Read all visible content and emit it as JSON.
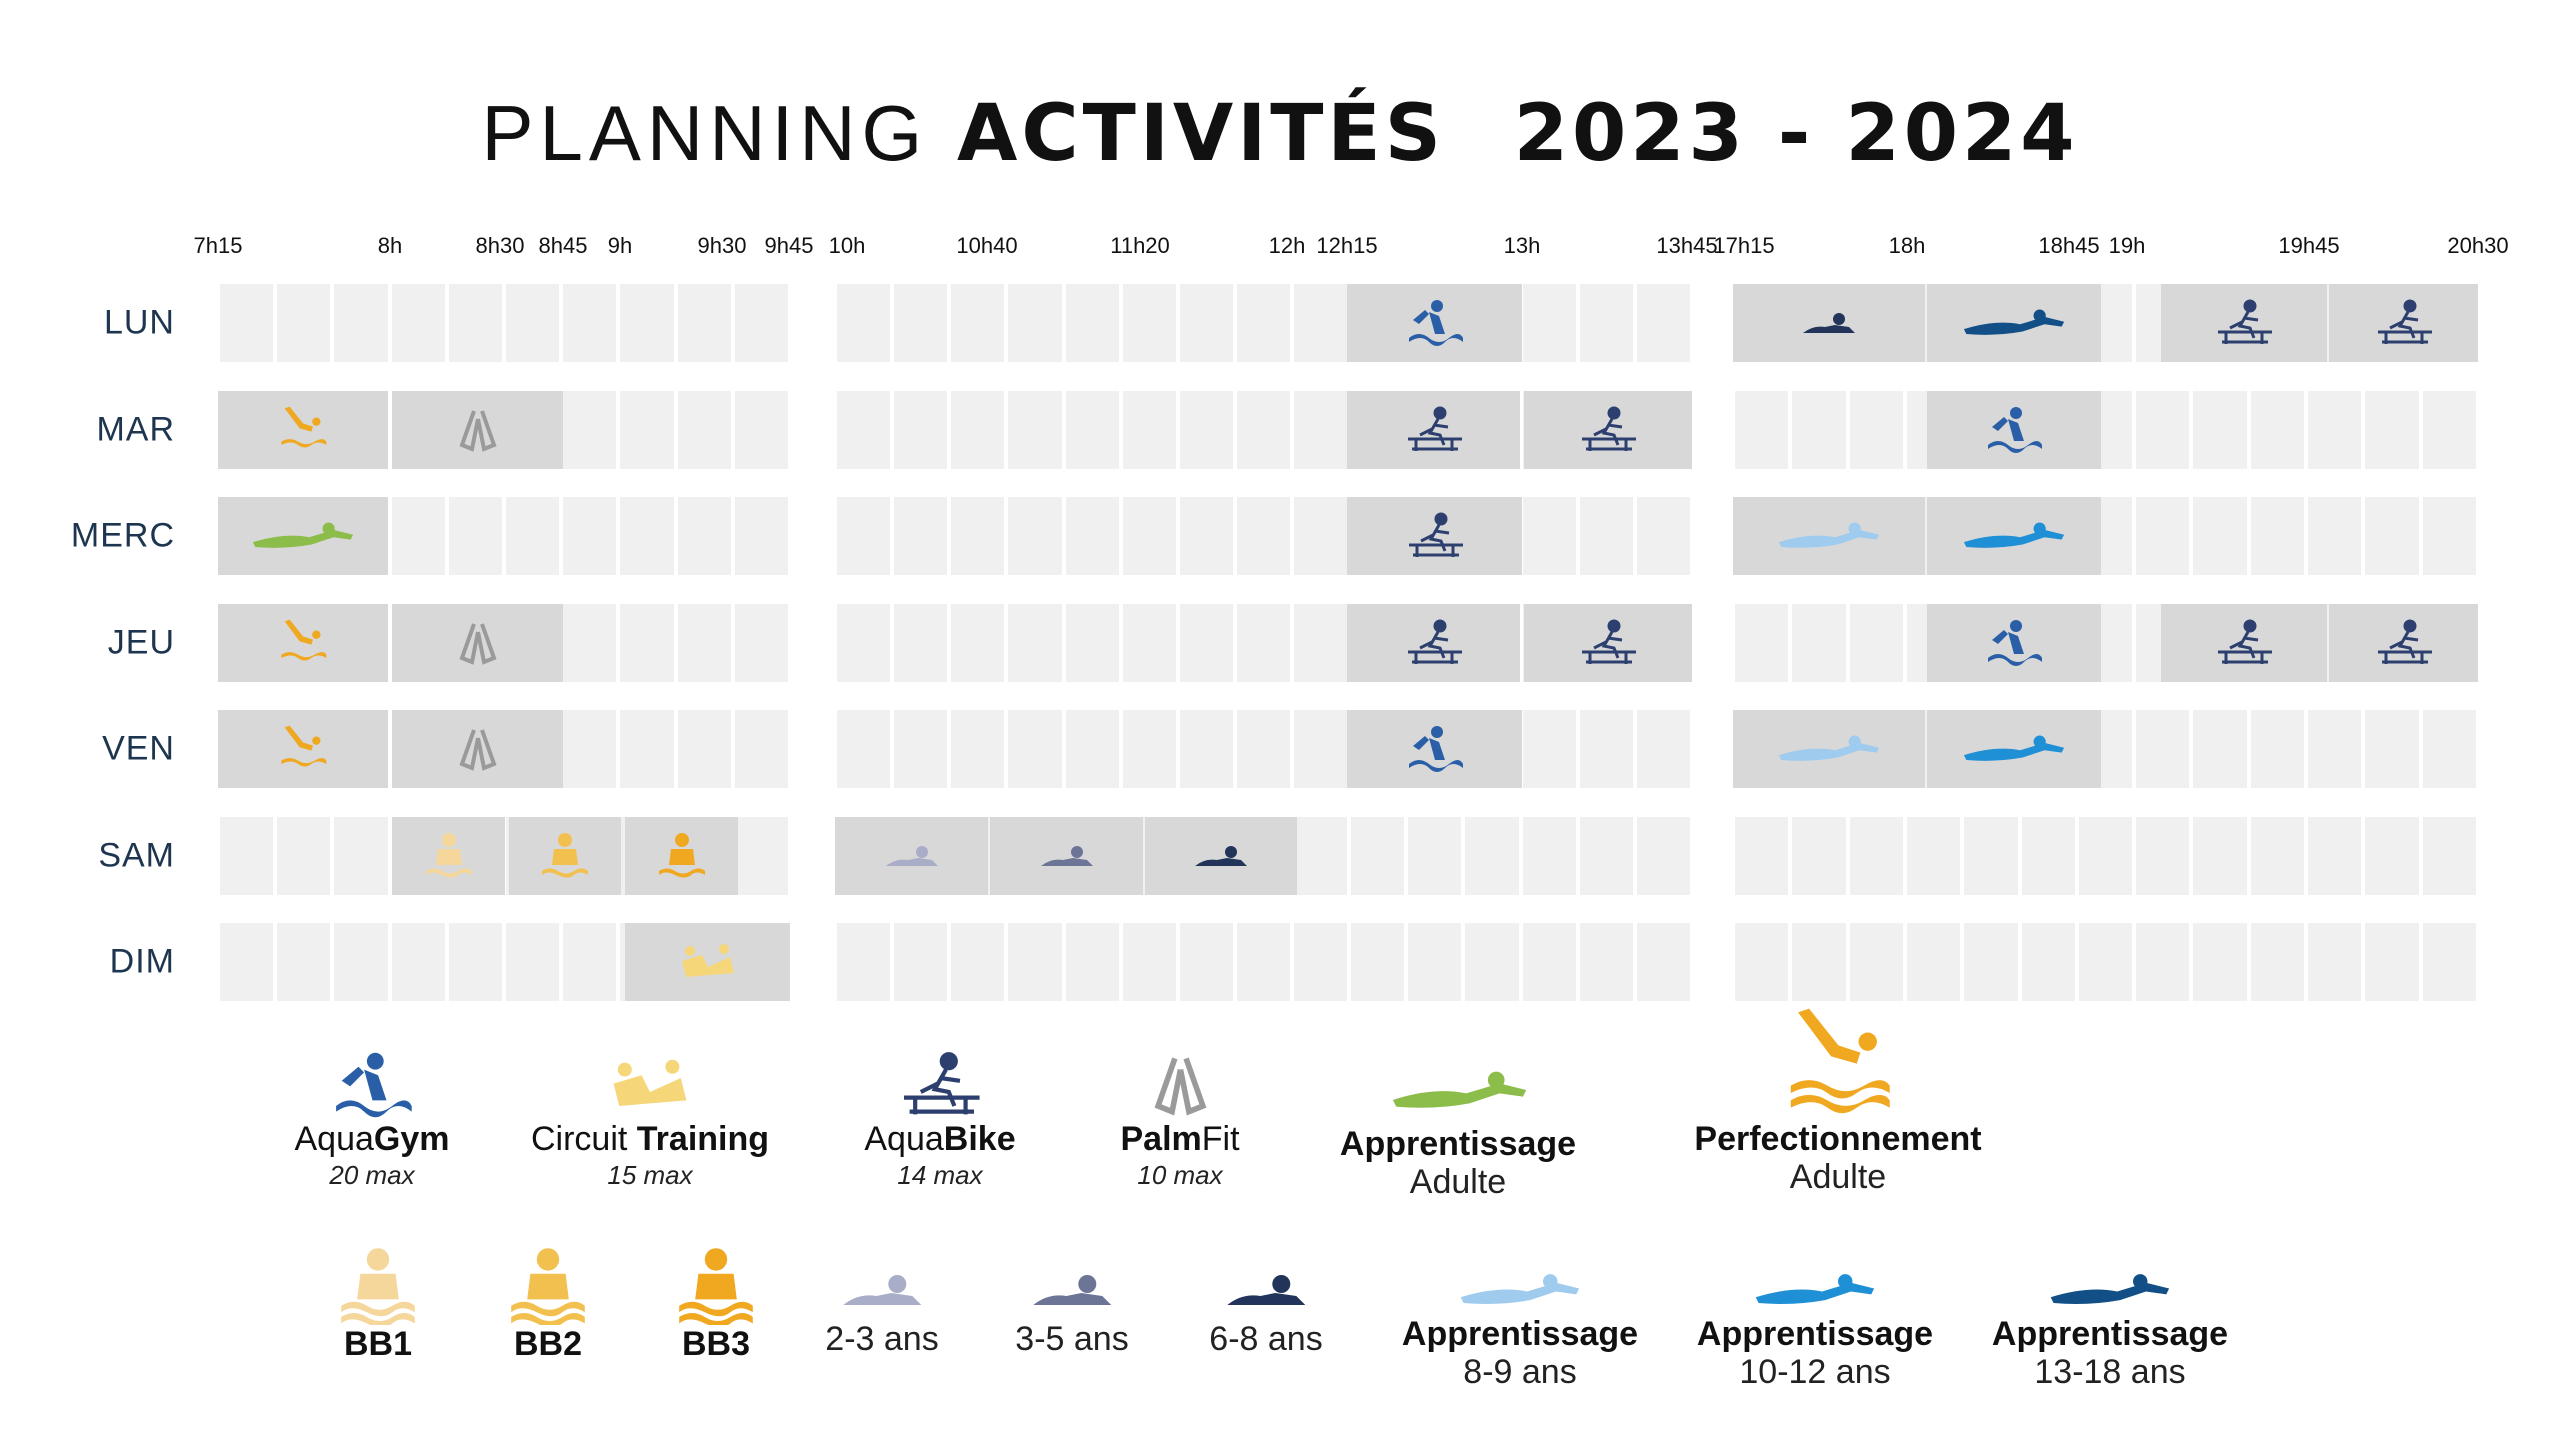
{
  "title": {
    "part1": "PLANNING",
    "part2": "ACTIVITÉS",
    "part3": "2023 - 2024"
  },
  "time_labels": [
    "7h15",
    "8h",
    "8h30",
    "8h45",
    "9h",
    "9h30",
    "9h45",
    "10h",
    "10h40",
    "11h20",
    "12h",
    "12h15",
    "13h",
    "13h45",
    "17h15",
    "18h",
    "18h45",
    "19h",
    "19h45",
    "20h30"
  ],
  "days": [
    "LUN",
    "MAR",
    "MERC",
    "JEU",
    "VEN",
    "SAM",
    "DIM"
  ],
  "colors": {
    "aquagym": "#2a5fa8",
    "circuit": "#f5d77a",
    "aquabike": "#2c3f6e",
    "palmfit": "#9a9a9a",
    "adulte_apprentissage": "#8cbd4a",
    "adulte_perf": "#f0a821",
    "bb1": "#f6d79b",
    "bb2": "#f2c04f",
    "bb3": "#f0a821",
    "kid23": "#a9adc8",
    "kid35": "#6d7597",
    "kid68": "#22345a",
    "ado89": "#9fcbef",
    "ado1012": "#1f8fd6",
    "ado1318": "#114f86"
  },
  "schedule": [
    {
      "day": "LUN",
      "activities": [
        "Aqua Gym 12h15-13h",
        "Apprentissage 6-8 ans 17h15-18h",
        "Apprentissage 13-18 ans 18h-18h45",
        "AquaBike 19h-19h45",
        "AquaBike 19h45-20h30"
      ]
    },
    {
      "day": "MAR",
      "activities": [
        "Perfectionnement Adulte 7h15-8h",
        "PalmFit 8h-8h45",
        "AquaBike 12h15-13h",
        "AquaBike 13h-13h45",
        "Aqua Gym 18h-18h45"
      ]
    },
    {
      "day": "MERC",
      "activities": [
        "Apprentissage Adulte 7h15-8h",
        "AquaBike 12h15-13h",
        "Apprentissage 8-9 ans 17h15-18h",
        "Apprentissage 10-12 ans 18h-18h45"
      ]
    },
    {
      "day": "JEU",
      "activities": [
        "Perfectionnement Adulte 7h15-8h",
        "PalmFit 8h-8h45",
        "AquaBike 12h15-13h",
        "AquaBike 13h-13h45",
        "Aqua Gym 18h-18h45",
        "AquaBike 19h-19h45",
        "AquaBike 19h45-20h30"
      ]
    },
    {
      "day": "VEN",
      "activities": [
        "Perfectionnement Adulte 7h15-8h",
        "PalmFit 8h-8h45",
        "Aqua Gym 12h15-13h",
        "Apprentissage 8-9 ans 17h15-18h",
        "Apprentissage 10-12 ans 18h-18h45"
      ]
    },
    {
      "day": "SAM",
      "activities": [
        "BB1 8h-8h30",
        "BB2 8h30-9h",
        "BB3 9h-9h30",
        "2-3 ans 10h-10h40",
        "3-5 ans 10h40-11h20",
        "6-8 ans 11h20-12h"
      ]
    },
    {
      "day": "DIM",
      "activities": [
        "Circuit Training 9h-9h45"
      ]
    }
  ],
  "legend": {
    "aquagym": {
      "light": "Aqua",
      "bold": "Gym",
      "max": "20 max"
    },
    "circuit": {
      "light": "Circuit ",
      "bold": "Training",
      "max": "15 max"
    },
    "aquabike": {
      "light": "Aqua",
      "bold": "Bike",
      "max": "14 max"
    },
    "palmfit": {
      "bold": "Palm",
      "light": "Fit",
      "max": "10 max"
    },
    "appr_adulte": {
      "line1": "Apprentissage",
      "line2": "Adulte"
    },
    "perf_adulte": {
      "line1": "Perfectionnement",
      "line2": "Adulte"
    },
    "bb1": "BB1",
    "bb2": "BB2",
    "bb3": "BB3",
    "kid23": "2-3 ans",
    "kid35": "3-5 ans",
    "kid68": "6-8 ans",
    "ado89": {
      "line1": "Apprentissage",
      "line2": "8-9 ans"
    },
    "ado1012": {
      "line1": "Apprentissage",
      "line2": "10-12 ans"
    },
    "ado1318": {
      "line1": "Apprentissage",
      "line2": "13-18 ans"
    }
  }
}
